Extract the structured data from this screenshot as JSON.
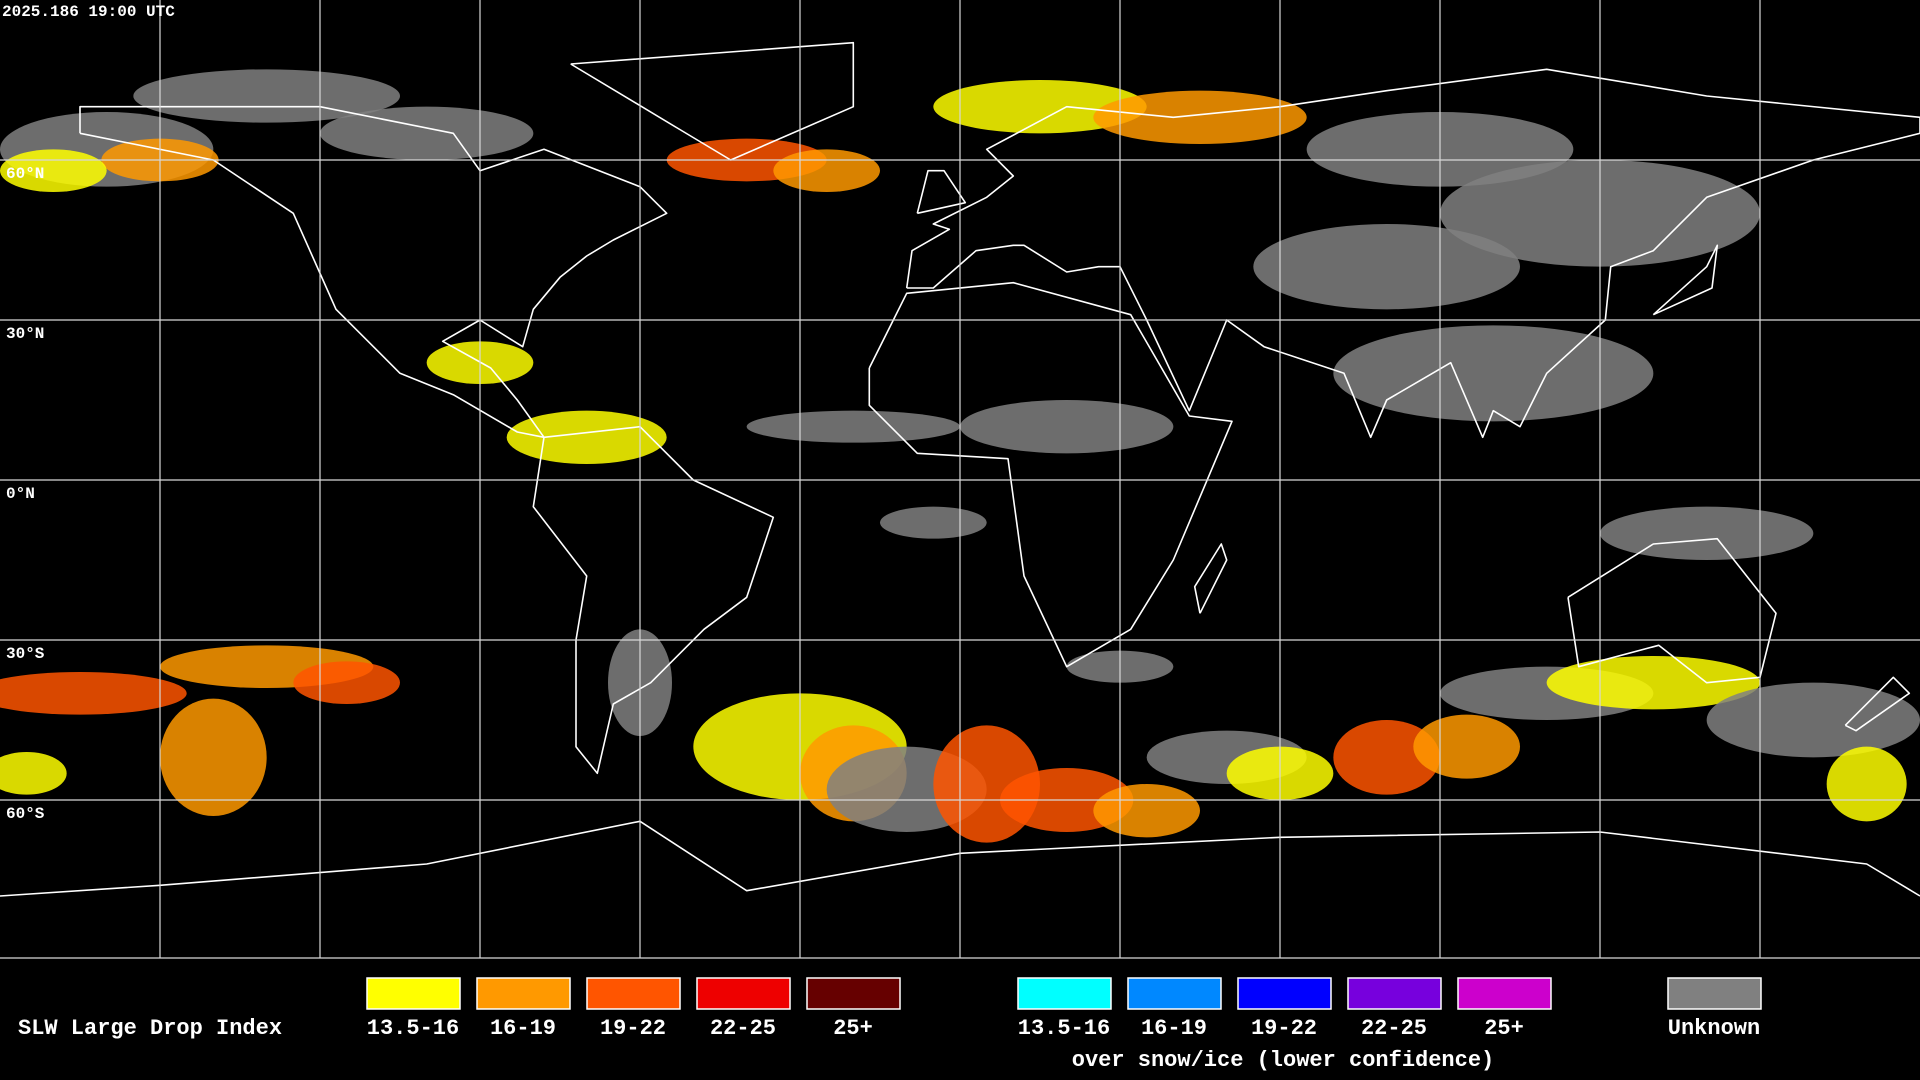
{
  "header": {
    "timestamp": "2025.186 19:00 UTC"
  },
  "map": {
    "lat_labels": [
      "60°N",
      "30°N",
      "0°N",
      "30°S",
      "60°S"
    ]
  },
  "legend": {
    "title": "SLW Large Drop Index",
    "items": [
      {
        "label": "13.5-16",
        "color": "#ffff00"
      },
      {
        "label": "16-19",
        "color": "#ff9900"
      },
      {
        "label": "19-22",
        "color": "#ff5500"
      },
      {
        "label": "22-25",
        "color": "#ee0000"
      },
      {
        "label": "25+",
        "color": "#660000"
      }
    ],
    "snow_items": [
      {
        "label": "13.5-16",
        "color": "#00ffff"
      },
      {
        "label": "16-19",
        "color": "#0088ff"
      },
      {
        "label": "19-22",
        "color": "#0000ff"
      },
      {
        "label": "22-25",
        "color": "#7700dd"
      },
      {
        "label": "25+",
        "color": "#cc00cc"
      }
    ],
    "snow_caption": "over snow/ice (lower confidence)",
    "unknown": {
      "label": "Unknown",
      "color": "#808080"
    }
  }
}
